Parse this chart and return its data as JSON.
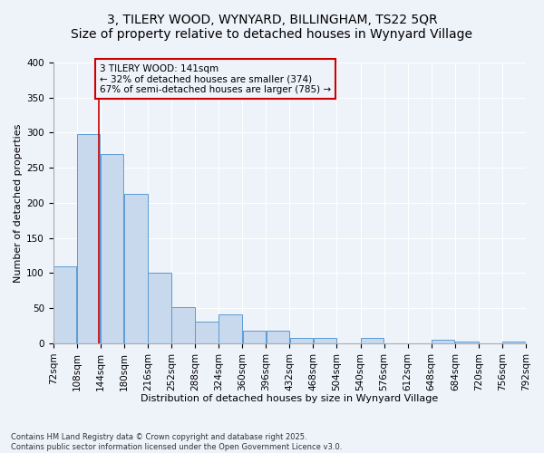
{
  "title_line1": "3, TILERY WOOD, WYNYARD, BILLINGHAM, TS22 5QR",
  "title_line2": "Size of property relative to detached houses in Wynyard Village",
  "xlabel": "Distribution of detached houses by size in Wynyard Village",
  "ylabel": "Number of detached properties",
  "footnote": "Contains HM Land Registry data © Crown copyright and database right 2025.\nContains public sector information licensed under the Open Government Licence v3.0.",
  "bar_edges": [
    72,
    108,
    144,
    180,
    216,
    252,
    288,
    324,
    360,
    396,
    432,
    468,
    504,
    540,
    576,
    612,
    648,
    684,
    720,
    756,
    792
  ],
  "bar_heights": [
    110,
    298,
    270,
    213,
    101,
    52,
    31,
    41,
    18,
    18,
    8,
    8,
    0,
    8,
    0,
    0,
    5,
    3,
    0,
    3
  ],
  "bar_color": "#c8d9ed",
  "bar_edge_color": "#5b9bd5",
  "vline_x": 141,
  "vline_color": "#cc0000",
  "annotation_text": "3 TILERY WOOD: 141sqm\n← 32% of detached houses are smaller (374)\n67% of semi-detached houses are larger (785) →",
  "annotation_box_color": "#cc0000",
  "annotation_text_color": "#000000",
  "ylim": [
    0,
    400
  ],
  "yticks": [
    0,
    50,
    100,
    150,
    200,
    250,
    300,
    350,
    400
  ],
  "background_color": "#eef2f9",
  "grid_color": "#ffffff",
  "title_fontsize": 10,
  "axis_fontsize": 8,
  "tick_fontsize": 7.5,
  "footnote_fontsize": 6
}
